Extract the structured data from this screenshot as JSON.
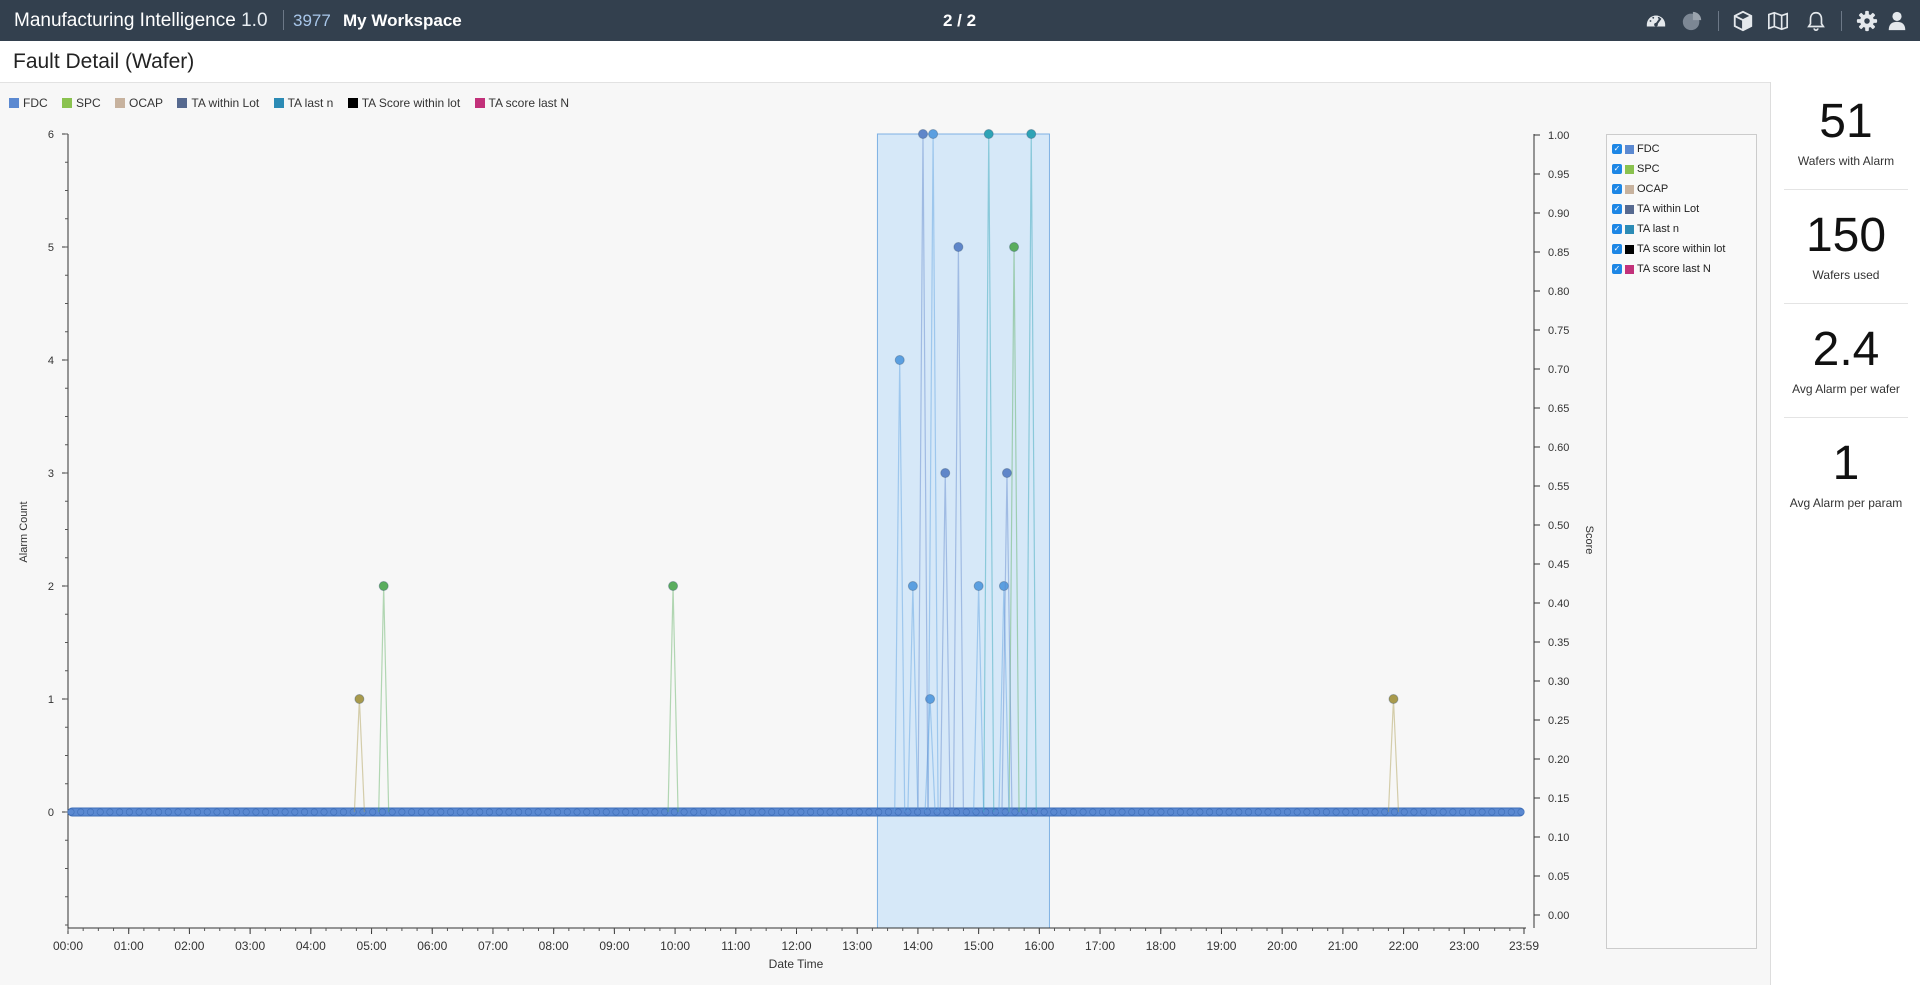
{
  "header": {
    "app_name": "Manufacturing Intelligence",
    "app_version": "1.0",
    "workspace_id": "3977",
    "workspace_name": "My Workspace",
    "pager": "2 / 2",
    "icons": [
      "dashboard-icon",
      "pie-chart-icon",
      "cube-icon",
      "map-icon",
      "bell-icon",
      "gear-icon",
      "user-icon"
    ]
  },
  "page": {
    "title": "Fault Detail (Wafer)"
  },
  "legend": [
    {
      "label": "FDC",
      "color": "#5b89d1"
    },
    {
      "label": "SPC",
      "color": "#8ac24f"
    },
    {
      "label": "OCAP",
      "color": "#c7b29e"
    },
    {
      "label": "TA within Lot",
      "color": "#56698f"
    },
    {
      "label": "TA last n",
      "color": "#2c8bb5"
    },
    {
      "label": "TA Score within lot",
      "color": "#000000"
    },
    {
      "label": "TA score last N",
      "color": "#c2317a"
    }
  ],
  "series_panel": [
    {
      "label": "FDC",
      "checked": true,
      "color": "#5b89d1"
    },
    {
      "label": "SPC",
      "checked": true,
      "color": "#8ac24f"
    },
    {
      "label": "OCAP",
      "checked": true,
      "color": "#c7b29e"
    },
    {
      "label": "TA within Lot",
      "checked": true,
      "color": "#56698f"
    },
    {
      "label": "TA last n",
      "checked": true,
      "color": "#2c8bb5"
    },
    {
      "label": "TA score within lot",
      "checked": true,
      "color": "#000000"
    },
    {
      "label": "TA score last N",
      "checked": true,
      "color": "#c2317a"
    }
  ],
  "kpis": [
    {
      "value": "51",
      "label": "Wafers with Alarm"
    },
    {
      "value": "150",
      "label": "Wafers used"
    },
    {
      "value": "2.4",
      "label": "Avg Alarm per wafer"
    },
    {
      "value": "1",
      "label": "Avg Alarm per param"
    }
  ],
  "chart_data": {
    "type": "scatter",
    "xlabel": "Date Time",
    "ylabel": "Alarm Count",
    "y2label": "Score",
    "x_ticks": [
      "00:00",
      "01:00",
      "02:00",
      "03:00",
      "04:00",
      "05:00",
      "06:00",
      "07:00",
      "08:00",
      "09:00",
      "10:00",
      "11:00",
      "12:00",
      "13:00",
      "14:00",
      "15:00",
      "16:00",
      "17:00",
      "18:00",
      "19:00",
      "20:00",
      "21:00",
      "22:00",
      "23:00",
      "23:59"
    ],
    "xlim": [
      "00:00",
      "23:59"
    ],
    "ylim": [
      0,
      6
    ],
    "y_ticks": [
      0,
      1,
      2,
      3,
      4,
      5,
      6
    ],
    "y2lim": [
      0,
      1
    ],
    "y2_ticks": [
      "0.00",
      "0.05",
      "0.10",
      "0.15",
      "0.20",
      "0.25",
      "0.30",
      "0.35",
      "0.40",
      "0.45",
      "0.50",
      "0.55",
      "0.60",
      "0.65",
      "0.70",
      "0.75",
      "0.80",
      "0.85",
      "0.90",
      "0.95",
      "1.00"
    ],
    "selection": {
      "start": "13:20",
      "end": "16:10"
    },
    "baseline_points": "alarm count 0 for all wafers across the day",
    "series": [
      {
        "name": "SPC",
        "color": "#5aad5e",
        "points": [
          [
            "05:12",
            2
          ],
          [
            "09:58",
            2
          ],
          [
            "15:35",
            5
          ]
        ]
      },
      {
        "name": "OCAP",
        "color": "#a89a4c",
        "points": [
          [
            "04:48",
            1
          ],
          [
            "21:50",
            1
          ]
        ]
      },
      {
        "name": "FDC",
        "color": "#5b9fe0",
        "points": [
          [
            "13:42",
            4
          ],
          [
            "13:55",
            2
          ],
          [
            "14:12",
            1
          ],
          [
            "14:15",
            6
          ],
          [
            "15:00",
            2
          ],
          [
            "15:25",
            2
          ]
        ]
      },
      {
        "name": "TA within Lot",
        "color": "#5f86c9",
        "points": [
          [
            "14:05",
            6
          ],
          [
            "14:27",
            3
          ],
          [
            "14:40",
            5
          ],
          [
            "15:28",
            3
          ]
        ]
      },
      {
        "name": "TA last n",
        "color": "#2ea3b6",
        "points": [
          [
            "15:10",
            6
          ],
          [
            "15:52",
            6
          ]
        ]
      }
    ]
  }
}
